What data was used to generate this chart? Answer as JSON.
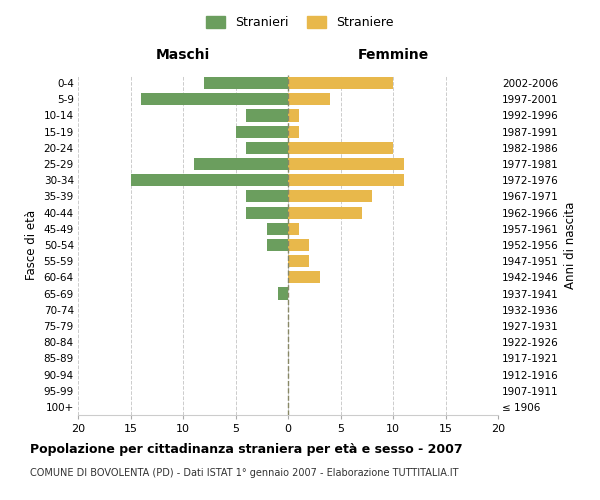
{
  "age_groups": [
    "100+",
    "95-99",
    "90-94",
    "85-89",
    "80-84",
    "75-79",
    "70-74",
    "65-69",
    "60-64",
    "55-59",
    "50-54",
    "45-49",
    "40-44",
    "35-39",
    "30-34",
    "25-29",
    "20-24",
    "15-19",
    "10-14",
    "5-9",
    "0-4"
  ],
  "birth_years": [
    "≤ 1906",
    "1907-1911",
    "1912-1916",
    "1917-1921",
    "1922-1926",
    "1927-1931",
    "1932-1936",
    "1937-1941",
    "1942-1946",
    "1947-1951",
    "1952-1956",
    "1957-1961",
    "1962-1966",
    "1967-1971",
    "1972-1976",
    "1977-1981",
    "1982-1986",
    "1987-1991",
    "1992-1996",
    "1997-2001",
    "2002-2006"
  ],
  "maschi": [
    0,
    0,
    0,
    0,
    0,
    0,
    0,
    1,
    0,
    0,
    2,
    2,
    4,
    4,
    15,
    9,
    4,
    5,
    4,
    14,
    8
  ],
  "femmine": [
    0,
    0,
    0,
    0,
    0,
    0,
    0,
    0,
    3,
    2,
    2,
    1,
    7,
    8,
    11,
    11,
    10,
    1,
    1,
    4,
    10
  ],
  "color_maschi": "#6b9e5e",
  "color_femmine": "#e8b84b",
  "title": "Popolazione per cittadinanza straniera per età e sesso - 2007",
  "subtitle": "COMUNE DI BOVOLENTA (PD) - Dati ISTAT 1° gennaio 2007 - Elaborazione TUTTITALIA.IT",
  "label_left": "Maschi",
  "label_right": "Femmine",
  "ylabel_left": "Fasce di età",
  "ylabel_right": "Anni di nascita",
  "legend_maschi": "Stranieri",
  "legend_femmine": "Straniere",
  "xlim": 20,
  "background_color": "#ffffff",
  "grid_color": "#cccccc",
  "center_line_color": "#888866"
}
